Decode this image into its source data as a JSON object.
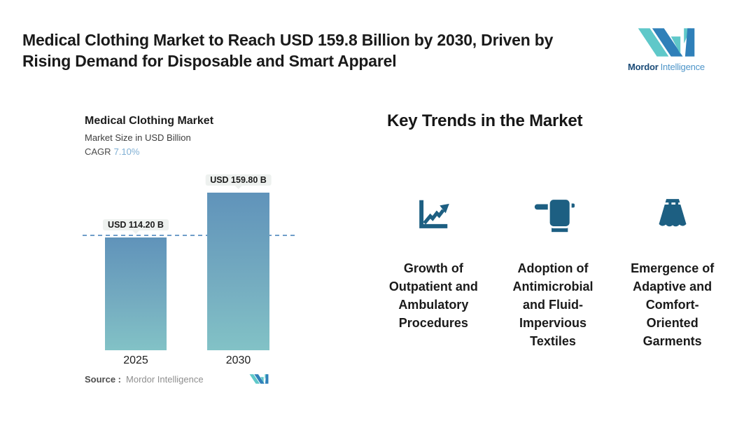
{
  "page": {
    "title_lines": [
      "Medical Clothing Market to Reach USD 159.8 Billion by 2030, Driven by",
      "Rising Demand for Disposable and Smart Apparel"
    ]
  },
  "brand": {
    "wordmark_bold": "Mordor",
    "wordmark_light": "Intelligence",
    "colors": {
      "logo_blue": "#2F80B9",
      "logo_teal": "#5FC8C9",
      "wordmark_dark": "#1C4C78",
      "wordmark_light_blue": "#4E95C9"
    }
  },
  "chart": {
    "title": "Medical Clothing Market",
    "subtitle": "Market Size in USD Billion",
    "cagr_label": "CAGR",
    "cagr_value": "7.10%",
    "source_label": "Source :",
    "source_value": "Mordor Intelligence",
    "chart_data": {
      "type": "bar",
      "categories": [
        "2025",
        "2030"
      ],
      "values": [
        114.2,
        159.8
      ],
      "value_labels": [
        "USD 114.20 B",
        "USD 159.80 B"
      ],
      "title": "Medical Clothing Market",
      "xlabel": "",
      "ylabel": "Market Size in USD Billion",
      "ylim": [
        0,
        170
      ],
      "grid": false,
      "legend": false,
      "bar_gradient_top": "#6093BA",
      "bar_gradient_bottom": "#82C2C6",
      "reference_line": {
        "value": 114.2,
        "style": "dashed",
        "color": "#6F9DC9"
      }
    }
  },
  "trends": {
    "heading": "Key Trends in the Market",
    "icon_color": "#1D5F82",
    "items": [
      {
        "icon": "line-chart-up-icon",
        "label_lines": [
          "Growth of",
          "Outpatient and",
          "Ambulatory",
          "Procedures"
        ]
      },
      {
        "icon": "towel-icon",
        "label_lines": [
          "Adoption of",
          "Antimicrobial",
          "and Fluid-",
          "Impervious",
          "Textiles"
        ]
      },
      {
        "icon": "skirt-icon",
        "label_lines": [
          "Emergence of",
          "Adaptive and",
          "Comfort-",
          "Oriented",
          "Garments"
        ]
      }
    ]
  }
}
